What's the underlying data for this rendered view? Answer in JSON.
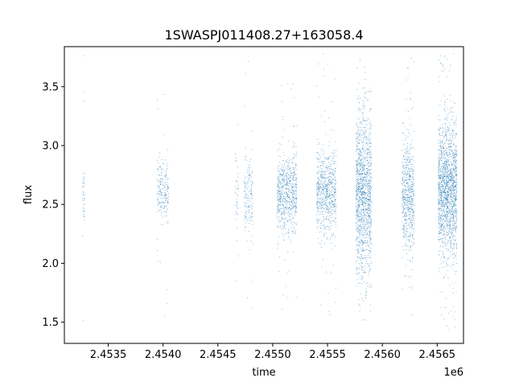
{
  "chart_data": {
    "type": "scatter",
    "title": "1SWASPJ011408.27+163058.4",
    "xlabel": "time",
    "ylabel": "flux",
    "x_offset_label": "1e6",
    "xlim": [
      2453100,
      2456740
    ],
    "ylim": [
      1.32,
      3.84
    ],
    "xticks": [
      2453500,
      2454000,
      2454500,
      2455000,
      2455500,
      2456000,
      2456500
    ],
    "xtick_labels": [
      "2.4535",
      "2.4540",
      "2.4545",
      "2.4550",
      "2.4555",
      "2.4560",
      "2.4565"
    ],
    "yticks": [
      1.5,
      2.0,
      2.5,
      3.0,
      3.5
    ],
    "ytick_labels": [
      "1.5",
      "2.0",
      "2.5",
      "3.0",
      "3.5"
    ],
    "grid": false,
    "legend": "none",
    "marker_color": "#1f77b4",
    "series": [
      {
        "seasons": [
          {
            "start": 2453265,
            "end": 2453285,
            "center": 2.6,
            "spread": 0.13,
            "min": 1.5,
            "max": 3.77,
            "density": 1
          },
          {
            "start": 2453945,
            "end": 2454050,
            "center": 2.62,
            "spread": 0.12,
            "min": 1.42,
            "max": 3.57,
            "density": 1
          },
          {
            "start": 2454660,
            "end": 2454690,
            "center": 2.55,
            "spread": 0.14,
            "min": 1.56,
            "max": 3.32,
            "density": 0.6
          },
          {
            "start": 2454740,
            "end": 2454820,
            "center": 2.55,
            "spread": 0.15,
            "min": 1.43,
            "max": 3.74,
            "density": 1
          },
          {
            "start": 2455040,
            "end": 2455220,
            "center": 2.58,
            "spread": 0.17,
            "min": 1.6,
            "max": 3.53,
            "density": 2
          },
          {
            "start": 2455400,
            "end": 2455580,
            "center": 2.6,
            "spread": 0.18,
            "min": 1.55,
            "max": 3.8,
            "density": 2
          },
          {
            "start": 2455760,
            "end": 2455900,
            "center": 2.57,
            "spread": 0.35,
            "min": 1.42,
            "max": 3.78,
            "density": 5
          },
          {
            "start": 2456180,
            "end": 2456290,
            "center": 2.57,
            "spread": 0.23,
            "min": 1.43,
            "max": 3.76,
            "density": 3
          },
          {
            "start": 2456510,
            "end": 2456680,
            "center": 2.62,
            "spread": 0.27,
            "min": 1.42,
            "max": 3.8,
            "density": 5
          }
        ]
      }
    ]
  }
}
